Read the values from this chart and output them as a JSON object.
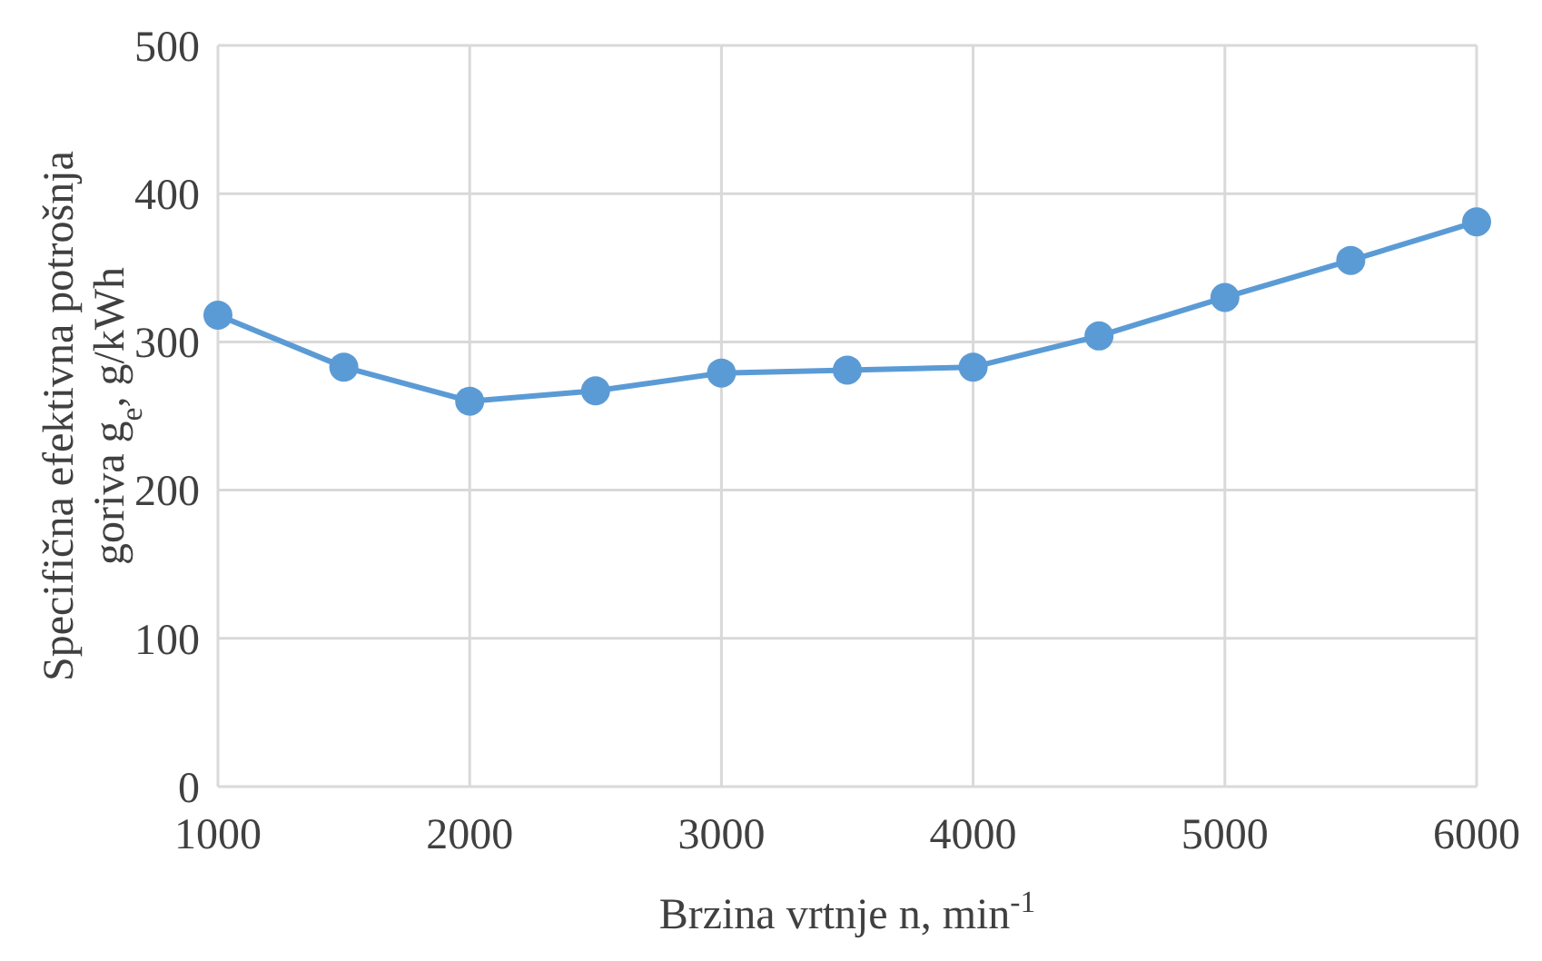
{
  "chart_data": {
    "type": "line",
    "xlabel": "Brzina vrtnje n, min$^{-1}$",
    "ylabel": "Specifična efektivna potrošnja\ngoriva g$_{e}$, g/kWh",
    "x": [
      1000,
      1500,
      2000,
      2500,
      3000,
      3500,
      4000,
      4500,
      5000,
      5500,
      6000
    ],
    "series": [
      {
        "color": "#5b9bd5",
        "values": [
          318,
          283,
          260,
          267,
          279,
          281,
          283,
          304,
          330,
          355,
          381
        ]
      }
    ],
    "xlim": [
      1000,
      6000
    ],
    "xticks": [
      1000,
      2000,
      3000,
      4000,
      5000,
      6000
    ],
    "ylim": [
      0,
      500
    ],
    "yticks": [
      0,
      100,
      200,
      300,
      400,
      500
    ],
    "grid": true,
    "marker": "circle",
    "line_style": "solid"
  }
}
